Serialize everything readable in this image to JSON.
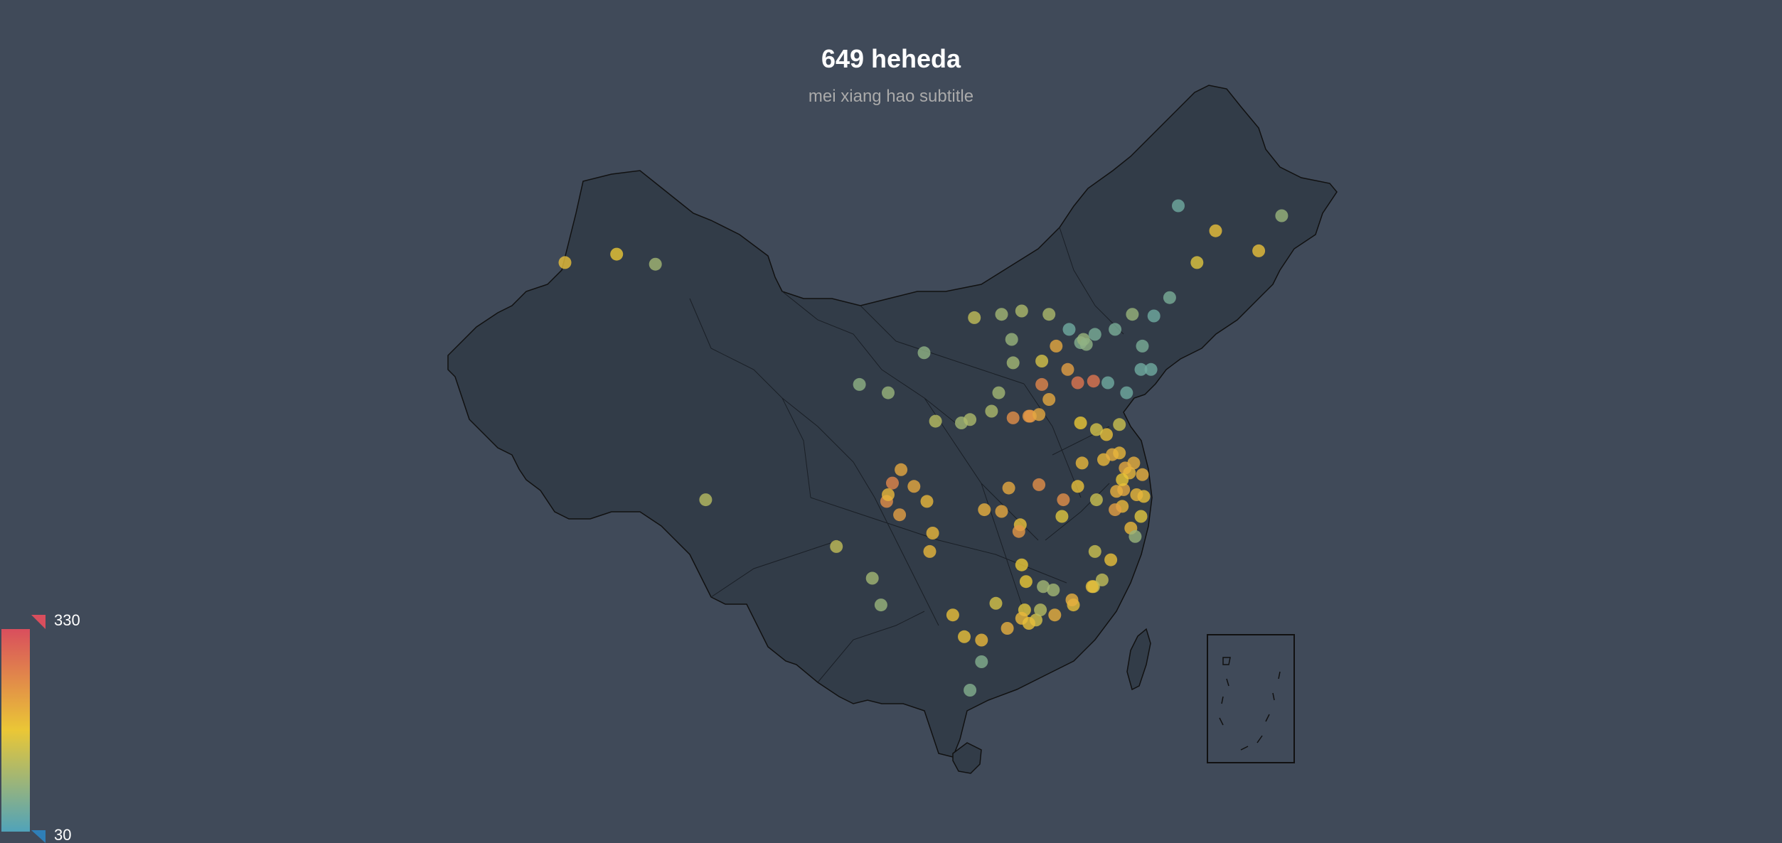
{
  "title": "649 heheda",
  "subtitle": "mei xiang hao subtitle",
  "visual_map": {
    "max_label": "330",
    "min_label": "30",
    "min": 30,
    "max": 330,
    "colors": [
      "#50a3ba",
      "#eac736",
      "#d94e5d"
    ]
  },
  "colors": {
    "background": "#404a59",
    "land_fill": "#323c48",
    "land_stroke": "#111111"
  },
  "points": [
    [
      87.6,
      43.8,
      110
    ],
    [
      84.9,
      44.4,
      180
    ],
    [
      81.3,
      43.9,
      190
    ],
    [
      91.1,
      29.7,
      130
    ],
    [
      101.8,
      36.6,
      90
    ],
    [
      103.8,
      36.1,
      100
    ],
    [
      106.3,
      38.5,
      90
    ],
    [
      108.9,
      34.3,
      110
    ],
    [
      111.7,
      40.8,
      110
    ],
    [
      113.1,
      41.0,
      120
    ],
    [
      109.8,
      40.6,
      140
    ],
    [
      116.4,
      39.9,
      60
    ],
    [
      117.2,
      39.1,
      80
    ],
    [
      121.5,
      38.9,
      70
    ],
    [
      123.4,
      41.8,
      70
    ],
    [
      125.3,
      43.9,
      170
    ],
    [
      126.6,
      45.8,
      190
    ],
    [
      124.0,
      47.3,
      60
    ],
    [
      129.6,
      44.6,
      190
    ],
    [
      131.2,
      46.7,
      100
    ],
    [
      121.5,
      31.2,
      210
    ],
    [
      118.8,
      32.1,
      200
    ],
    [
      120.2,
      30.3,
      220
    ],
    [
      117.3,
      31.9,
      200
    ],
    [
      117.0,
      36.7,
      280
    ],
    [
      120.4,
      36.1,
      60
    ],
    [
      113.6,
      34.7,
      240
    ],
    [
      112.5,
      37.9,
      110
    ],
    [
      114.5,
      38.0,
      160
    ],
    [
      114.3,
      30.6,
      250
    ],
    [
      113.0,
      28.2,
      190
    ],
    [
      115.9,
      28.7,
      170
    ],
    [
      119.3,
      26.1,
      190
    ],
    [
      113.3,
      23.1,
      170
    ],
    [
      114.1,
      22.5,
      160
    ],
    [
      108.3,
      22.8,
      190
    ],
    [
      110.3,
      20.0,
      80
    ],
    [
      106.7,
      26.6,
      200
    ],
    [
      102.7,
      25.0,
      110
    ],
    [
      104.1,
      30.7,
      260
    ],
    [
      106.5,
      29.6,
      200
    ],
    [
      121.6,
      29.9,
      190
    ],
    [
      120.7,
      28.0,
      200
    ],
    [
      118.1,
      24.5,
      150
    ],
    [
      116.7,
      23.4,
      190
    ],
    [
      109.5,
      18.3,
      80
    ],
    [
      117.2,
      34.3,
      180
    ],
    [
      115.0,
      35.7,
      220
    ],
    [
      119.9,
      34.2,
      150
    ],
    [
      120.3,
      31.6,
      220
    ],
    [
      120.6,
      31.3,
      200
    ],
    [
      119.4,
      32.4,
      210
    ],
    [
      119.0,
      33.6,
      190
    ],
    [
      116.3,
      37.5,
      230
    ],
    [
      118.1,
      36.8,
      280
    ],
    [
      119.1,
      36.7,
      60
    ],
    [
      122.1,
      37.5,
      60
    ],
    [
      121.4,
      37.5,
      60
    ],
    [
      117.4,
      39.3,
      100
    ],
    [
      118.2,
      39.6,
      70
    ],
    [
      115.5,
      38.9,
      220
    ],
    [
      114.5,
      36.6,
      260
    ],
    [
      113.7,
      34.7,
      240
    ],
    [
      112.5,
      34.6,
      250
    ],
    [
      114.3,
      34.8,
      220
    ],
    [
      111.7,
      29.0,
      220
    ],
    [
      112.9,
      27.8,
      240
    ],
    [
      110.5,
      29.1,
      210
    ],
    [
      113.1,
      25.8,
      180
    ],
    [
      106.9,
      27.7,
      200
    ],
    [
      104.6,
      28.8,
      230
    ],
    [
      105.6,
      30.5,
      220
    ],
    [
      103.7,
      29.6,
      250
    ],
    [
      100.2,
      26.9,
      140
    ],
    [
      103.3,
      23.4,
      100
    ],
    [
      111.3,
      23.5,
      160
    ],
    [
      116.6,
      23.7,
      210
    ],
    [
      113.1,
      22.6,
      200
    ],
    [
      113.6,
      22.3,
      190
    ],
    [
      112.1,
      22.0,
      210
    ],
    [
      110.3,
      21.3,
      200
    ],
    [
      115.4,
      22.8,
      210
    ],
    [
      109.1,
      21.5,
      190
    ],
    [
      114.4,
      23.1,
      130
    ],
    [
      118.0,
      24.5,
      190
    ],
    [
      121.0,
      27.5,
      100
    ],
    [
      120.1,
      29.3,
      200
    ],
    [
      121.4,
      28.7,
      170
    ],
    [
      119.6,
      29.1,
      230
    ],
    [
      117.0,
      30.5,
      190
    ],
    [
      118.3,
      29.7,
      150
    ],
    [
      116.0,
      29.7,
      250
    ],
    [
      112.2,
      30.4,
      220
    ],
    [
      117.6,
      39.0,
      90
    ],
    [
      119.6,
      39.9,
      70
    ],
    [
      122.3,
      40.7,
      60
    ],
    [
      120.8,
      40.8,
      100
    ],
    [
      115.0,
      40.8,
      120
    ],
    [
      112.4,
      39.3,
      100
    ],
    [
      111.5,
      36.1,
      110
    ],
    [
      111.0,
      35.0,
      120
    ],
    [
      107.1,
      34.4,
      130
    ],
    [
      109.5,
      34.5,
      120
    ],
    [
      104.7,
      31.5,
      220
    ],
    [
      103.8,
      30.0,
      200
    ],
    [
      119.9,
      32.5,
      200
    ],
    [
      120.9,
      31.9,
      210
    ],
    [
      118.3,
      33.9,
      160
    ],
    [
      121.1,
      30.0,
      200
    ],
    [
      120.1,
      30.9,
      180
    ],
    [
      119.7,
      30.2,
      210
    ],
    [
      118.2,
      26.6,
      150
    ],
    [
      118.7,
      24.9,
      140
    ],
    [
      115.3,
      24.3,
      110
    ],
    [
      114.6,
      24.5,
      110
    ],
    [
      113.4,
      24.8,
      180
    ]
  ]
}
